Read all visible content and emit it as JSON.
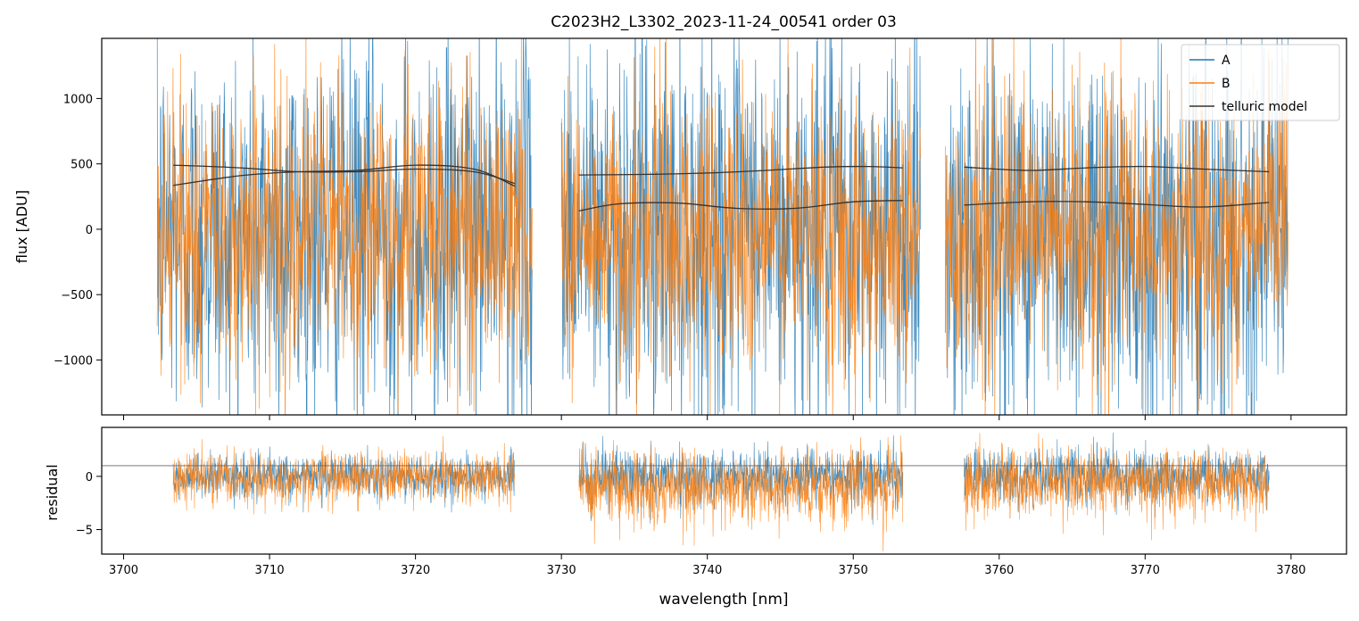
{
  "chart_data": [
    {
      "type": "line",
      "panel": "main",
      "title": "C2023H2_L3302_2023-11-24_00541  order 03",
      "xlabel": "",
      "ylabel": "flux [ADU]",
      "xlim": [
        3698.5,
        3783.8
      ],
      "ylim": [
        -1420,
        1460
      ],
      "yticks": [
        -1000,
        -500,
        0,
        500,
        1000
      ],
      "ytick_labels": [
        "−1000",
        "−500",
        "0",
        "500",
        "1000"
      ],
      "xticks": [
        3700,
        3710,
        3720,
        3730,
        3740,
        3750,
        3760,
        3770,
        3780
      ],
      "legend_position": "top-right",
      "legend": [
        "A",
        "B",
        "telluric model"
      ],
      "segments": [
        {
          "x_start": 3702.3,
          "x_end": 3728.0,
          "model_x_start": 3703.4,
          "model_x_end": 3726.8
        },
        {
          "x_start": 3730.0,
          "x_end": 3754.6,
          "model_x_start": 3731.2,
          "model_x_end": 3753.4
        },
        {
          "x_start": 3756.3,
          "x_end": 3779.8,
          "model_x_start": 3757.6,
          "model_x_end": 3778.5
        }
      ],
      "series": [
        {
          "name": "A",
          "color": "#1f77b4",
          "center": 0,
          "noise_amplitude": 1300,
          "clip": true
        },
        {
          "name": "B",
          "color": "#ff7f0e",
          "center": -40,
          "noise_amplitude": 1000,
          "clip": true
        },
        {
          "name": "telluric model",
          "color": "#333333",
          "curves": [
            {
              "x": [
                3703.4,
                3708,
                3712,
                3716,
                3720,
                3724,
                3726.8
              ],
              "y": [
                490,
                470,
                440,
                440,
                460,
                440,
                350
              ]
            },
            {
              "x": [
                3703.4,
                3708,
                3712,
                3716,
                3720,
                3724,
                3726.8
              ],
              "y": [
                335,
                410,
                440,
                450,
                490,
                460,
                330
              ]
            },
            {
              "x": [
                3731.2,
                3736,
                3740,
                3744,
                3748,
                3751,
                3753.4
              ],
              "y": [
                415,
                420,
                430,
                450,
                475,
                480,
                470
              ]
            },
            {
              "x": [
                3731.2,
                3734,
                3738,
                3742,
                3746,
                3750,
                3753.4
              ],
              "y": [
                140,
                195,
                200,
                160,
                160,
                210,
                220
              ]
            },
            {
              "x": [
                3757.6,
                3762,
                3766,
                3770,
                3774,
                3778.5
              ],
              "y": [
                475,
                450,
                470,
                480,
                460,
                440
              ]
            },
            {
              "x": [
                3757.6,
                3762,
                3766,
                3770,
                3774,
                3778.5
              ],
              "y": [
                185,
                210,
                210,
                190,
                170,
                205
              ]
            }
          ]
        }
      ]
    },
    {
      "type": "line",
      "panel": "residual",
      "title": "",
      "xlabel": "wavelength [nm]",
      "ylabel": "residual",
      "xlim": [
        3698.5,
        3783.8
      ],
      "ylim": [
        -7.3,
        4.6
      ],
      "yticks": [
        -5,
        0
      ],
      "ytick_labels": [
        "−5",
        "0"
      ],
      "xticks": [
        3700,
        3710,
        3720,
        3730,
        3740,
        3750,
        3760,
        3770,
        3780
      ],
      "xtick_labels": [
        "3700",
        "3710",
        "3720",
        "3730",
        "3740",
        "3750",
        "3760",
        "3770",
        "3780"
      ],
      "reference_line": 1,
      "segments": [
        {
          "x_start": 3703.4,
          "x_end": 3726.8,
          "A_spread": 2.2,
          "B_spread": 2.6,
          "B_offset": -0.1
        },
        {
          "x_start": 3731.2,
          "x_end": 3753.4,
          "A_spread": 2.8,
          "B_spread": 3.8,
          "B_offset": -1.0
        },
        {
          "x_start": 3757.6,
          "x_end": 3778.5,
          "A_spread": 2.8,
          "B_spread": 3.5,
          "B_offset": -0.6
        }
      ],
      "series": [
        {
          "name": "A",
          "color": "#1f77b4"
        },
        {
          "name": "B",
          "color": "#ff7f0e"
        }
      ]
    }
  ]
}
